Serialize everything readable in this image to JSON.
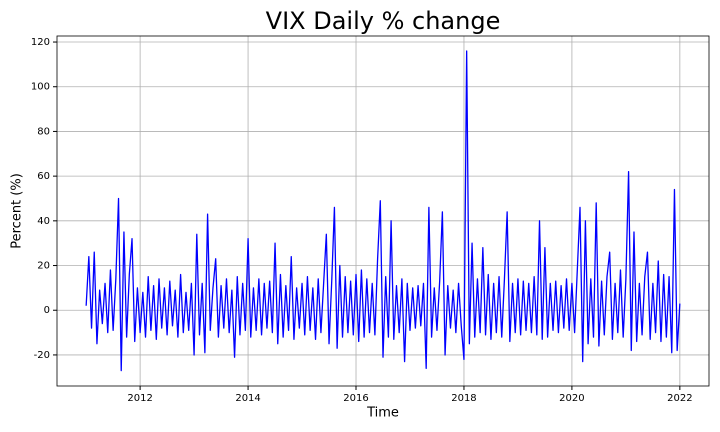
{
  "chart_data": {
    "type": "line",
    "title": "VIX Daily % change",
    "x_label": "Time",
    "y_label": "Percent (%)",
    "grid": true,
    "xlim": [
      2010.46,
      2022.54
    ],
    "xticks": [
      2012,
      2014,
      2016,
      2018,
      2020,
      2022
    ],
    "ylim": [
      -33.9,
      122.7
    ],
    "yticks": [
      -20,
      0,
      20,
      40,
      60,
      80,
      100,
      120
    ],
    "x": [
      2011.0,
      2011.05,
      2011.1,
      2011.15,
      2011.2,
      2011.25,
      2011.3,
      2011.35,
      2011.4,
      2011.45,
      2011.5,
      2011.55,
      2011.6,
      2011.65,
      2011.7,
      2011.75,
      2011.8,
      2011.85,
      2011.9,
      2011.95,
      2012.0,
      2012.05,
      2012.1,
      2012.15,
      2012.2,
      2012.25,
      2012.3,
      2012.35,
      2012.4,
      2012.45,
      2012.5,
      2012.55,
      2012.6,
      2012.65,
      2012.7,
      2012.75,
      2012.8,
      2012.85,
      2012.9,
      2012.95,
      2013.0,
      2013.05,
      2013.1,
      2013.15,
      2013.2,
      2013.25,
      2013.3,
      2013.35,
      2013.4,
      2013.45,
      2013.5,
      2013.55,
      2013.6,
      2013.65,
      2013.7,
      2013.75,
      2013.8,
      2013.85,
      2013.9,
      2013.95,
      2014.0,
      2014.05,
      2014.1,
      2014.15,
      2014.2,
      2014.25,
      2014.3,
      2014.35,
      2014.4,
      2014.45,
      2014.5,
      2014.55,
      2014.6,
      2014.65,
      2014.7,
      2014.75,
      2014.8,
      2014.85,
      2014.9,
      2014.95,
      2015.0,
      2015.05,
      2015.1,
      2015.15,
      2015.2,
      2015.25,
      2015.3,
      2015.35,
      2015.4,
      2015.45,
      2015.5,
      2015.55,
      2015.6,
      2015.65,
      2015.7,
      2015.75,
      2015.8,
      2015.85,
      2015.9,
      2015.95,
      2016.0,
      2016.05,
      2016.1,
      2016.15,
      2016.2,
      2016.25,
      2016.3,
      2016.35,
      2016.4,
      2016.45,
      2016.5,
      2016.55,
      2016.6,
      2016.65,
      2016.7,
      2016.75,
      2016.8,
      2016.85,
      2016.9,
      2016.95,
      2017.0,
      2017.05,
      2017.1,
      2017.15,
      2017.2,
      2017.25,
      2017.3,
      2017.35,
      2017.4,
      2017.45,
      2017.5,
      2017.55,
      2017.6,
      2017.65,
      2017.7,
      2017.75,
      2017.8,
      2017.85,
      2017.9,
      2017.95,
      2018.0,
      2018.05,
      2018.1,
      2018.15,
      2018.2,
      2018.25,
      2018.3,
      2018.35,
      2018.4,
      2018.45,
      2018.5,
      2018.55,
      2018.6,
      2018.65,
      2018.7,
      2018.75,
      2018.8,
      2018.85,
      2018.9,
      2018.95,
      2019.0,
      2019.05,
      2019.1,
      2019.15,
      2019.2,
      2019.25,
      2019.3,
      2019.35,
      2019.4,
      2019.45,
      2019.5,
      2019.55,
      2019.6,
      2019.65,
      2019.7,
      2019.75,
      2019.8,
      2019.85,
      2019.9,
      2019.95,
      2020.0,
      2020.05,
      2020.1,
      2020.15,
      2020.2,
      2020.25,
      2020.3,
      2020.35,
      2020.4,
      2020.45,
      2020.5,
      2020.55,
      2020.6,
      2020.65,
      2020.7,
      2020.75,
      2020.8,
      2020.85,
      2020.9,
      2020.95,
      2021.0,
      2021.05,
      2021.1,
      2021.15,
      2021.2,
      2021.25,
      2021.3,
      2021.35,
      2021.4,
      2021.45,
      2021.5,
      2021.55,
      2021.6,
      2021.65,
      2021.7,
      2021.75,
      2021.8,
      2021.85,
      2021.9,
      2021.95,
      2022.0
    ],
    "series": [
      {
        "color": "#0000ff",
        "values": [
          2,
          24,
          -8,
          26,
          -15,
          9,
          -6,
          12,
          -10,
          18,
          -9,
          14,
          50,
          -27,
          35,
          -12,
          16,
          32,
          -14,
          10,
          -10,
          8,
          -12,
          15,
          -9,
          11,
          -13,
          14,
          -8,
          10,
          -11,
          13,
          -7,
          9,
          -12,
          16,
          -10,
          8,
          -9,
          12,
          -20,
          34,
          -11,
          12,
          -19,
          43,
          -9,
          10,
          23,
          -12,
          11,
          -8,
          14,
          -10,
          9,
          -21,
          15,
          -11,
          12,
          -9,
          32,
          -12,
          10,
          -9,
          14,
          -11,
          12,
          -8,
          13,
          -10,
          30,
          -15,
          16,
          -12,
          11,
          -9,
          24,
          -13,
          10,
          -8,
          12,
          -11,
          15,
          -9,
          10,
          -13,
          14,
          -10,
          12,
          34,
          -15,
          13,
          46,
          -17,
          20,
          -12,
          15,
          -10,
          13,
          -11,
          16,
          -14,
          18,
          -12,
          14,
          -10,
          12,
          -11,
          23,
          49,
          -21,
          15,
          -12,
          40,
          -13,
          11,
          -10,
          14,
          -23,
          12,
          -9,
          10,
          -8,
          11,
          -7,
          12,
          -26,
          46,
          -12,
          10,
          -9,
          13,
          44,
          -20,
          11,
          -8,
          9,
          -10,
          12,
          -7,
          -22,
          116,
          -15,
          30,
          -12,
          14,
          -10,
          28,
          -11,
          16,
          -13,
          12,
          -10,
          15,
          -12,
          14,
          44,
          -14,
          12,
          -10,
          14,
          -11,
          13,
          -9,
          12,
          -10,
          15,
          -11,
          40,
          -13,
          28,
          -12,
          12,
          -9,
          13,
          -10,
          11,
          -8,
          14,
          -9,
          12,
          -10,
          18,
          46,
          -23,
          40,
          -15,
          14,
          -12,
          48,
          -16,
          13,
          -11,
          15,
          26,
          -13,
          12,
          -10,
          18,
          -12,
          14,
          62,
          -18,
          35,
          -14,
          12,
          -11,
          15,
          26,
          -13,
          12,
          -10,
          22,
          -14,
          16,
          -12,
          15,
          -19,
          54,
          -18,
          3
        ]
      }
    ]
  }
}
